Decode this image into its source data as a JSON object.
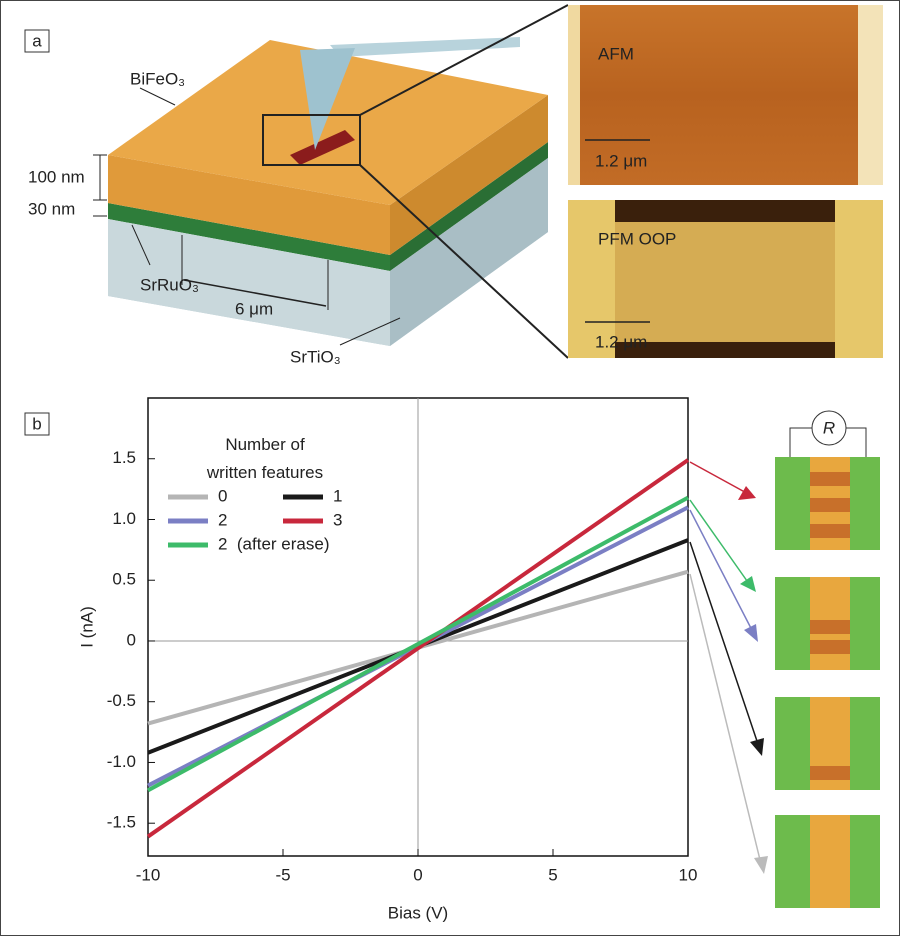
{
  "panel_a": {
    "label": "a",
    "layers": {
      "top": "BiFeO₃",
      "bottom_electrode": "SrRuO₃",
      "substrate": "SrTiO₃"
    },
    "dimensions": {
      "film": "100 nm",
      "electrode": "30 nm",
      "gap": "6 μm"
    },
    "images": [
      {
        "title": "AFM",
        "scale_bar": "1.2 μm"
      },
      {
        "title": "PFM OOP",
        "scale_bar": "1.2 μm"
      }
    ]
  },
  "panel_b": {
    "label": "b",
    "schematic_label": "R"
  },
  "chart_data": {
    "type": "line",
    "x_label": "Bias (V)",
    "y_label": "I (nA)",
    "legend_title": "Number of written features",
    "x": [
      -10,
      10
    ],
    "series": [
      {
        "name": "0",
        "color": "#b5b5b5",
        "values": [
          -0.68,
          0.57
        ]
      },
      {
        "name": "1",
        "color": "#1a1a1a",
        "values": [
          -0.92,
          0.83
        ]
      },
      {
        "name": "2",
        "color": "#7b7fc4",
        "values": [
          -1.19,
          1.1
        ]
      },
      {
        "name": "3",
        "color": "#c8283c",
        "values": [
          -1.61,
          1.49
        ]
      },
      {
        "name": "2  (after erase)",
        "color": "#3dbb6a",
        "values": [
          -1.23,
          1.18
        ]
      }
    ],
    "xlim": [
      -10,
      10
    ],
    "ylim": [
      -1.77,
      2.0
    ],
    "xticks": [
      -10,
      -5,
      0,
      5,
      10
    ],
    "yticks": [
      -1.5,
      {
        "value": -1.0,
        "label": "-1.0"
      },
      -0.5,
      0,
      0.5,
      {
        "value": 1.0,
        "label": "1.0"
      },
      1.5
    ],
    "zero_lines": true
  }
}
